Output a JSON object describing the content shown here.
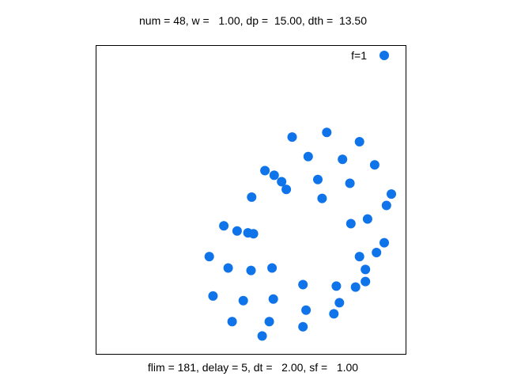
{
  "chart_data": {
    "type": "scatter",
    "title": "num = 48, w =   1.00, dp =  15.00, dth =  13.50",
    "footer": "flim = 181, delay = 5, dt =   2.00, sf =   1.00",
    "xlabel": "",
    "ylabel": "",
    "xlim": [
      0,
      1
    ],
    "ylim": [
      0,
      1
    ],
    "grid": false,
    "legend": {
      "placement": "top-right"
    },
    "series": [
      {
        "name": "f=1",
        "color": "#0F73EA",
        "points": [
          [
            0.633,
            0.704
          ],
          [
            0.745,
            0.719
          ],
          [
            0.851,
            0.689
          ],
          [
            0.685,
            0.641
          ],
          [
            0.796,
            0.632
          ],
          [
            0.9,
            0.614
          ],
          [
            0.545,
            0.595
          ],
          [
            0.575,
            0.58
          ],
          [
            0.599,
            0.559
          ],
          [
            0.716,
            0.566
          ],
          [
            0.82,
            0.554
          ],
          [
            0.614,
            0.534
          ],
          [
            0.954,
            0.519
          ],
          [
            0.502,
            0.509
          ],
          [
            0.73,
            0.505
          ],
          [
            0.938,
            0.482
          ],
          [
            0.877,
            0.438
          ],
          [
            0.823,
            0.423
          ],
          [
            0.412,
            0.416
          ],
          [
            0.455,
            0.399
          ],
          [
            0.49,
            0.393
          ],
          [
            0.508,
            0.39
          ],
          [
            0.931,
            0.361
          ],
          [
            0.906,
            0.329
          ],
          [
            0.365,
            0.316
          ],
          [
            0.851,
            0.316
          ],
          [
            0.426,
            0.279
          ],
          [
            0.568,
            0.279
          ],
          [
            0.5,
            0.271
          ],
          [
            0.87,
            0.274
          ],
          [
            0.87,
            0.235
          ],
          [
            0.668,
            0.225
          ],
          [
            0.776,
            0.22
          ],
          [
            0.838,
            0.217
          ],
          [
            0.377,
            0.188
          ],
          [
            0.475,
            0.173
          ],
          [
            0.572,
            0.178
          ],
          [
            0.786,
            0.166
          ],
          [
            0.678,
            0.142
          ],
          [
            0.768,
            0.13
          ],
          [
            0.439,
            0.105
          ],
          [
            0.559,
            0.105
          ],
          [
            0.668,
            0.088
          ],
          [
            0.536,
            0.058
          ]
        ]
      }
    ]
  }
}
